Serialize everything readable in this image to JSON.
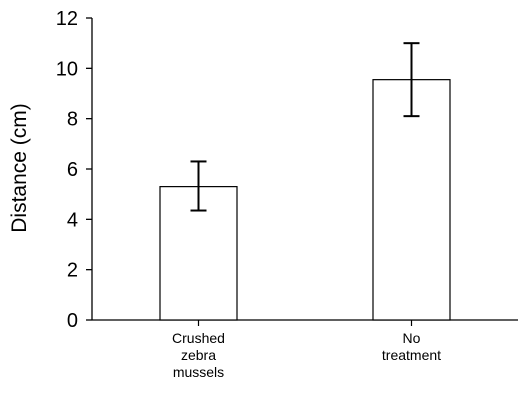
{
  "chart_data": {
    "type": "bar",
    "title": "",
    "xlabel": "",
    "ylabel": "Distance (cm)",
    "ylim": [
      0,
      12
    ],
    "yticks": [
      0,
      2,
      4,
      6,
      8,
      10,
      12
    ],
    "categories": [
      [
        "Crushed",
        "zebra",
        "mussels"
      ],
      [
        "No",
        "treatment"
      ]
    ],
    "values": [
      5.3,
      9.55
    ],
    "error_low": [
      4.35,
      8.1
    ],
    "error_high": [
      6.3,
      11.0
    ],
    "grid": false,
    "bar_fill": "#ffffff",
    "bar_stroke": "#000000"
  }
}
